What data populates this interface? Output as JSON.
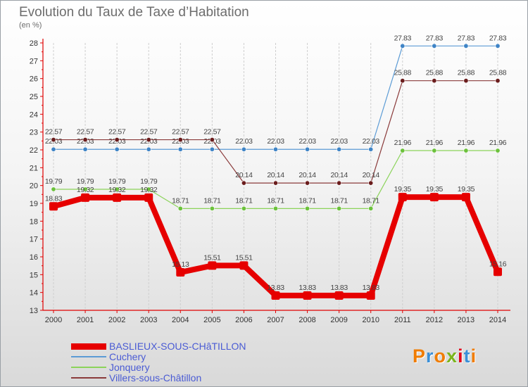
{
  "header": {
    "title": "Evolution du Taux de Taxe d’Habitation",
    "unit_label": "(en %)"
  },
  "logo": {
    "text": "Proxiti",
    "colors": [
      "#f07c00",
      "#3a8fd8",
      "#f07c00",
      "#7ab51d",
      "#e2001a",
      "#3a8fd8",
      "#f07c00"
    ]
  },
  "chart_data": {
    "type": "line",
    "x": [
      "2000",
      "2001",
      "2002",
      "2003",
      "2004",
      "2005",
      "2006",
      "2007",
      "2008",
      "2009",
      "2010",
      "2011",
      "2012",
      "2013",
      "2014"
    ],
    "ylim": [
      13,
      28
    ],
    "yticks": [
      "13",
      "14",
      "15",
      "16",
      "17",
      "18",
      "19",
      "20",
      "21",
      "22",
      "23",
      "24",
      "25",
      "26",
      "27",
      "28"
    ],
    "grid": "vertical",
    "legend_position": "bottom-left",
    "series": [
      {
        "name": "Cuchery",
        "color": "#5b9bd5",
        "marker": "#3f84c6",
        "values": [
          22.03,
          22.03,
          22.03,
          22.03,
          22.03,
          22.03,
          22.03,
          22.03,
          22.03,
          22.03,
          22.03,
          27.83,
          27.83,
          27.83,
          27.83
        ],
        "labels": [
          "22.03",
          "22.03",
          "22.03",
          "22.03",
          "22.03",
          "22.03",
          "22.03",
          "22.03",
          "22.03",
          "22.03",
          "22.03",
          "27.83",
          "27.83",
          "27.83",
          "27.83"
        ]
      },
      {
        "name": "Jonquery",
        "color": "#8bd35a",
        "marker": "#6cc13c",
        "values": [
          19.79,
          19.79,
          19.79,
          19.79,
          18.71,
          18.71,
          18.71,
          18.71,
          18.71,
          18.71,
          18.71,
          21.96,
          21.96,
          21.96,
          21.96
        ],
        "labels": [
          "19.79",
          "19.79",
          "19.79",
          "19.79",
          "18.71",
          "18.71",
          "18.71",
          "18.71",
          "18.71",
          "18.71",
          "18.71",
          "21.96",
          "21.96",
          "21.96",
          "21.96"
        ]
      },
      {
        "name": "Villers-sous-Châtillon",
        "color": "#8a3a3a",
        "marker": "#6a1c1c",
        "values": [
          22.57,
          22.57,
          22.57,
          22.57,
          22.57,
          22.57,
          20.14,
          20.14,
          20.14,
          20.14,
          20.14,
          25.88,
          25.88,
          25.88,
          25.88
        ],
        "labels": [
          "22.57",
          "22.57",
          "22.57",
          "22.57",
          "22.57",
          "22.57",
          "20.14",
          "20.14",
          "20.14",
          "20.14",
          "20.14",
          "25.88",
          "25.88",
          "25.88",
          "25.88"
        ]
      },
      {
        "name": "BASLIEUX-SOUS-CHâTILLON",
        "color": "#e60000",
        "marker": "#e60000",
        "highlight": true,
        "values": [
          18.83,
          19.32,
          19.32,
          19.32,
          15.13,
          15.51,
          15.51,
          13.83,
          13.83,
          13.83,
          13.83,
          19.35,
          19.35,
          19.35,
          15.16
        ],
        "labels": [
          "18.83",
          "19.32",
          "19.32",
          "19.32",
          "15.13",
          "15.51",
          "15.51",
          "13.83",
          "13.83",
          "13.83",
          "13.83",
          "19.35",
          "19.35",
          "19.35",
          "15.16"
        ]
      }
    ],
    "legend_order": [
      "BASLIEUX-SOUS-CHâTILLON",
      "Cuchery",
      "Jonquery",
      "Villers-sous-Châtillon"
    ]
  }
}
